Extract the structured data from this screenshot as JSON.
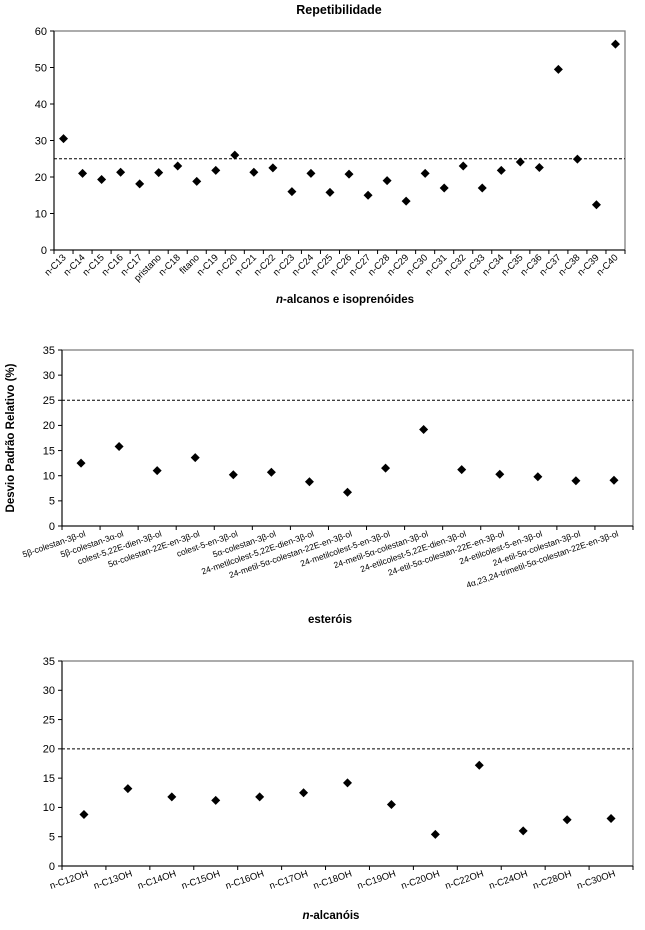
{
  "figure_title": "Repetibilidade",
  "colors": {
    "background": "#ffffff",
    "marker": "#000000",
    "plot_frame": "#7f7f7f",
    "axis": "#000000",
    "reference_line": "#000000",
    "text": "#000000"
  },
  "chart_data": [
    {
      "type": "scatter",
      "title": "Repetibilidade",
      "xlabel": "n-alcanos e isoprenóides",
      "ylabel": "",
      "ylim": [
        0,
        60
      ],
      "ytick_step": 10,
      "yticks": [
        0,
        10,
        20,
        30,
        40,
        50,
        60
      ],
      "reference_line_y": 25,
      "grid": "off",
      "legend": "none",
      "marker": "black-diamond",
      "categories": [
        "n-C13",
        "n-C14",
        "n-C15",
        "n-C16",
        "n-C17",
        "pristano",
        "n-C18",
        "fitano",
        "n-C19",
        "n-C20",
        "n-C21",
        "n-C22",
        "n-C23",
        "n-C24",
        "n-C25",
        "n-C26",
        "n-C27",
        "n-C28",
        "n-C29",
        "n-C30",
        "n-C31",
        "n-C32",
        "n-C33",
        "n-C34",
        "n-C35",
        "n-C36",
        "n-C37",
        "n-C38",
        "n-C39",
        "n-C40"
      ],
      "values": [
        30.5,
        21.0,
        19.3,
        21.3,
        18.1,
        21.2,
        23.0,
        18.8,
        21.8,
        26.0,
        21.3,
        22.5,
        16.0,
        21.0,
        15.8,
        20.8,
        15.0,
        19.0,
        13.4,
        21.0,
        17.0,
        23.0,
        17.0,
        21.8,
        24.1,
        22.6,
        49.5,
        24.9,
        12.4,
        56.4
      ]
    },
    {
      "type": "scatter",
      "title": "",
      "xlabel": "esteróis",
      "ylabel": "Desvio Padrão Relativo (%)",
      "ylim": [
        0,
        35
      ],
      "ytick_step": 5,
      "yticks": [
        0,
        5,
        10,
        15,
        20,
        25,
        30,
        35
      ],
      "reference_line_y": 25,
      "grid": "off",
      "legend": "none",
      "marker": "black-diamond",
      "categories": [
        "5β-colestan-3β-ol",
        "5β-colestan-3α-ol",
        "colest-5,22E-dien-3β-ol",
        "5α-colestan-22E-en-3β-ol",
        "colest-5-en-3β-ol",
        "5α-colestan-3β-ol",
        "24-metilcolest-5,22E-dien-3β-ol",
        "24-metil-5α-colestan-22E-en-3β-ol",
        "24-metilcolest-5-en-3β-ol",
        "24-metil-5α-colestan-3β-ol",
        "24-etilcolest-5,22E-dien-3β-ol",
        "24-etil-5α-colestan-22E-en-3β-ol",
        "24-etilcolest-5-en-3β-ol",
        "24-etil-5α-colestan-3β-ol",
        "4α,23,24-trimetil-5α-colestan-22E-en-3β-ol"
      ],
      "values": [
        12.5,
        15.8,
        11.0,
        13.6,
        10.2,
        10.7,
        8.8,
        6.7,
        11.5,
        19.2,
        11.2,
        10.3,
        9.8,
        9.0,
        9.1
      ]
    },
    {
      "type": "scatter",
      "title": "",
      "xlabel": "n-alcanóis",
      "ylabel": "",
      "ylim": [
        0,
        35
      ],
      "ytick_step": 5,
      "yticks": [
        0,
        5,
        10,
        15,
        20,
        25,
        30,
        35
      ],
      "reference_line_y": 20,
      "grid": "off",
      "legend": "none",
      "marker": "black-diamond",
      "categories": [
        "n-C12OH",
        "n-C13OH",
        "n-C14OH",
        "n-C15OH",
        "n-C16OH",
        "n-C17OH",
        "n-C18OH",
        "n-C19OH",
        "n-C20OH",
        "n-C22OH",
        "n-C24OH",
        "n-C28OH",
        "n-C30OH"
      ],
      "values": [
        8.8,
        13.2,
        11.8,
        11.2,
        11.8,
        12.5,
        14.2,
        10.5,
        5.4,
        17.2,
        6.0,
        7.9,
        8.1
      ]
    }
  ]
}
